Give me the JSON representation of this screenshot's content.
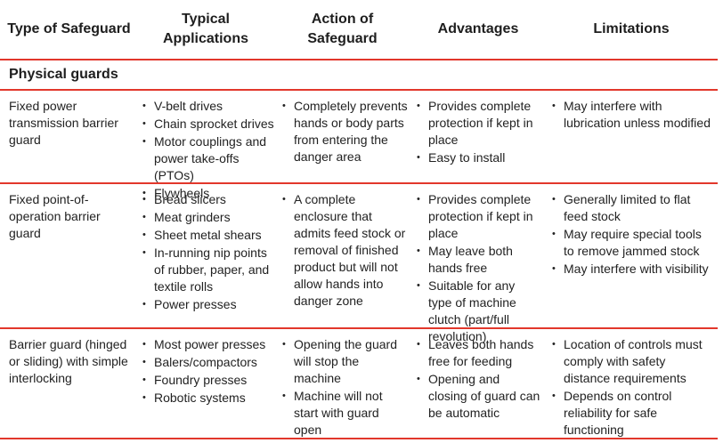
{
  "headers": {
    "type": "Type of Safeguard",
    "applications_line1": "Typical",
    "applications_line2": "Applications",
    "action_line1": "Action of",
    "action_line2": "Safeguard",
    "advantages": "Advantages",
    "limitations": "Limitations"
  },
  "section_title": "Physical guards",
  "rows": [
    {
      "type": "Fixed power transmission barrier guard",
      "applications": [
        "V-belt drives",
        "Chain sprocket drives",
        "Motor couplings and power take-offs (PTOs)",
        "Flywheels"
      ],
      "action": [
        "Completely prevents hands or body parts from entering the danger area"
      ],
      "advantages": [
        "Provides complete protection if kept in place",
        "Easy to install"
      ],
      "limitations": [
        "May interfere with lubrication unless modified"
      ]
    },
    {
      "type": "Fixed point-of-operation barrier guard",
      "applications": [
        "Bread slicers",
        "Meat grinders",
        "Sheet metal shears",
        "In-running nip points of rubber, paper, and textile rolls",
        "Power presses"
      ],
      "action": [
        "A complete enclosure that admits feed stock or removal of finished product but will not allow hands into danger zone"
      ],
      "advantages": [
        "Provides complete protection if kept in place",
        "May leave both hands free",
        "Suitable for any type of machine clutch (part/full revolution)"
      ],
      "limitations": [
        "Generally limited to flat feed stock",
        "May require special tools to remove jammed stock",
        "May interfere with visibility"
      ]
    },
    {
      "type": "Barrier guard (hinged or sliding) with simple interlocking",
      "applications": [
        "Most power presses",
        "Balers/compactors",
        "Foundry presses",
        "Robotic systems"
      ],
      "action": [
        "Opening the guard will stop the machine",
        "Machine will not start with guard open"
      ],
      "advantages": [
        "Leaves both hands free for feeding",
        "Opening and closing of guard can be automatic"
      ],
      "limitations": [
        "Location of controls must comply with safety distance requirements",
        "Depends on control reliability for safe functioning"
      ]
    }
  ]
}
